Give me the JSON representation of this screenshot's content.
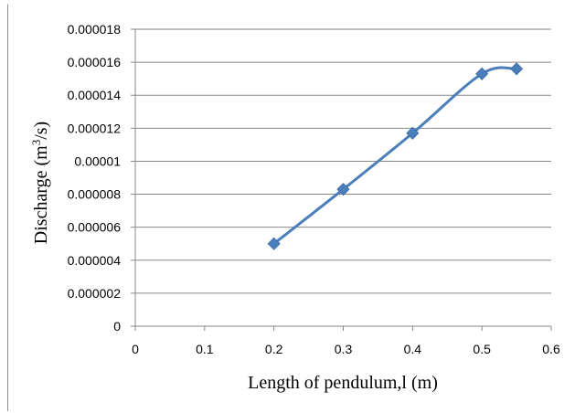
{
  "chart_data": {
    "type": "line",
    "title": "",
    "xlabel": "Length of pendulum,l (m)",
    "ylabel_parts": {
      "prefix": "Discharge (m",
      "sup": "3",
      "suffix": "/s)"
    },
    "xlim": [
      0,
      0.6
    ],
    "ylim": [
      0,
      1.8e-05
    ],
    "x_ticks": [
      "0",
      "0.1",
      "0.2",
      "0.3",
      "0.4",
      "0.5",
      "0.6"
    ],
    "y_ticks": [
      "0",
      "0.000002",
      "0.000004",
      "0.000006",
      "0.000008",
      "0.00001",
      "0.000012",
      "0.000014",
      "0.000016",
      "0.000018"
    ],
    "grid": "horizontal",
    "legend": "none",
    "series": [
      {
        "x": [
          0.2,
          0.3,
          0.4,
          0.5,
          0.55
        ],
        "y": [
          5e-06,
          8.3e-06,
          1.17e-05,
          1.53e-05,
          1.56e-05
        ],
        "color": "#4a7ebb",
        "marker": "diamond",
        "smooth": true
      }
    ]
  }
}
